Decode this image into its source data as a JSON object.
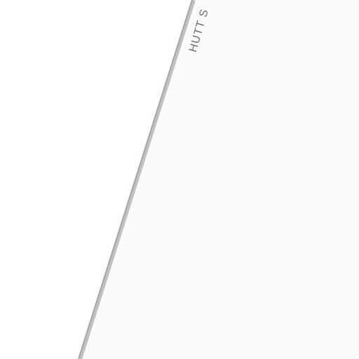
{
  "map": {
    "street_label": "HUTT S",
    "colors": {
      "background": "#ffffff",
      "land": "#fafafa",
      "road_edge": "#bfc1c1",
      "road_edge_dark": "#9ea1a1",
      "label": "#6f6f6f"
    }
  }
}
